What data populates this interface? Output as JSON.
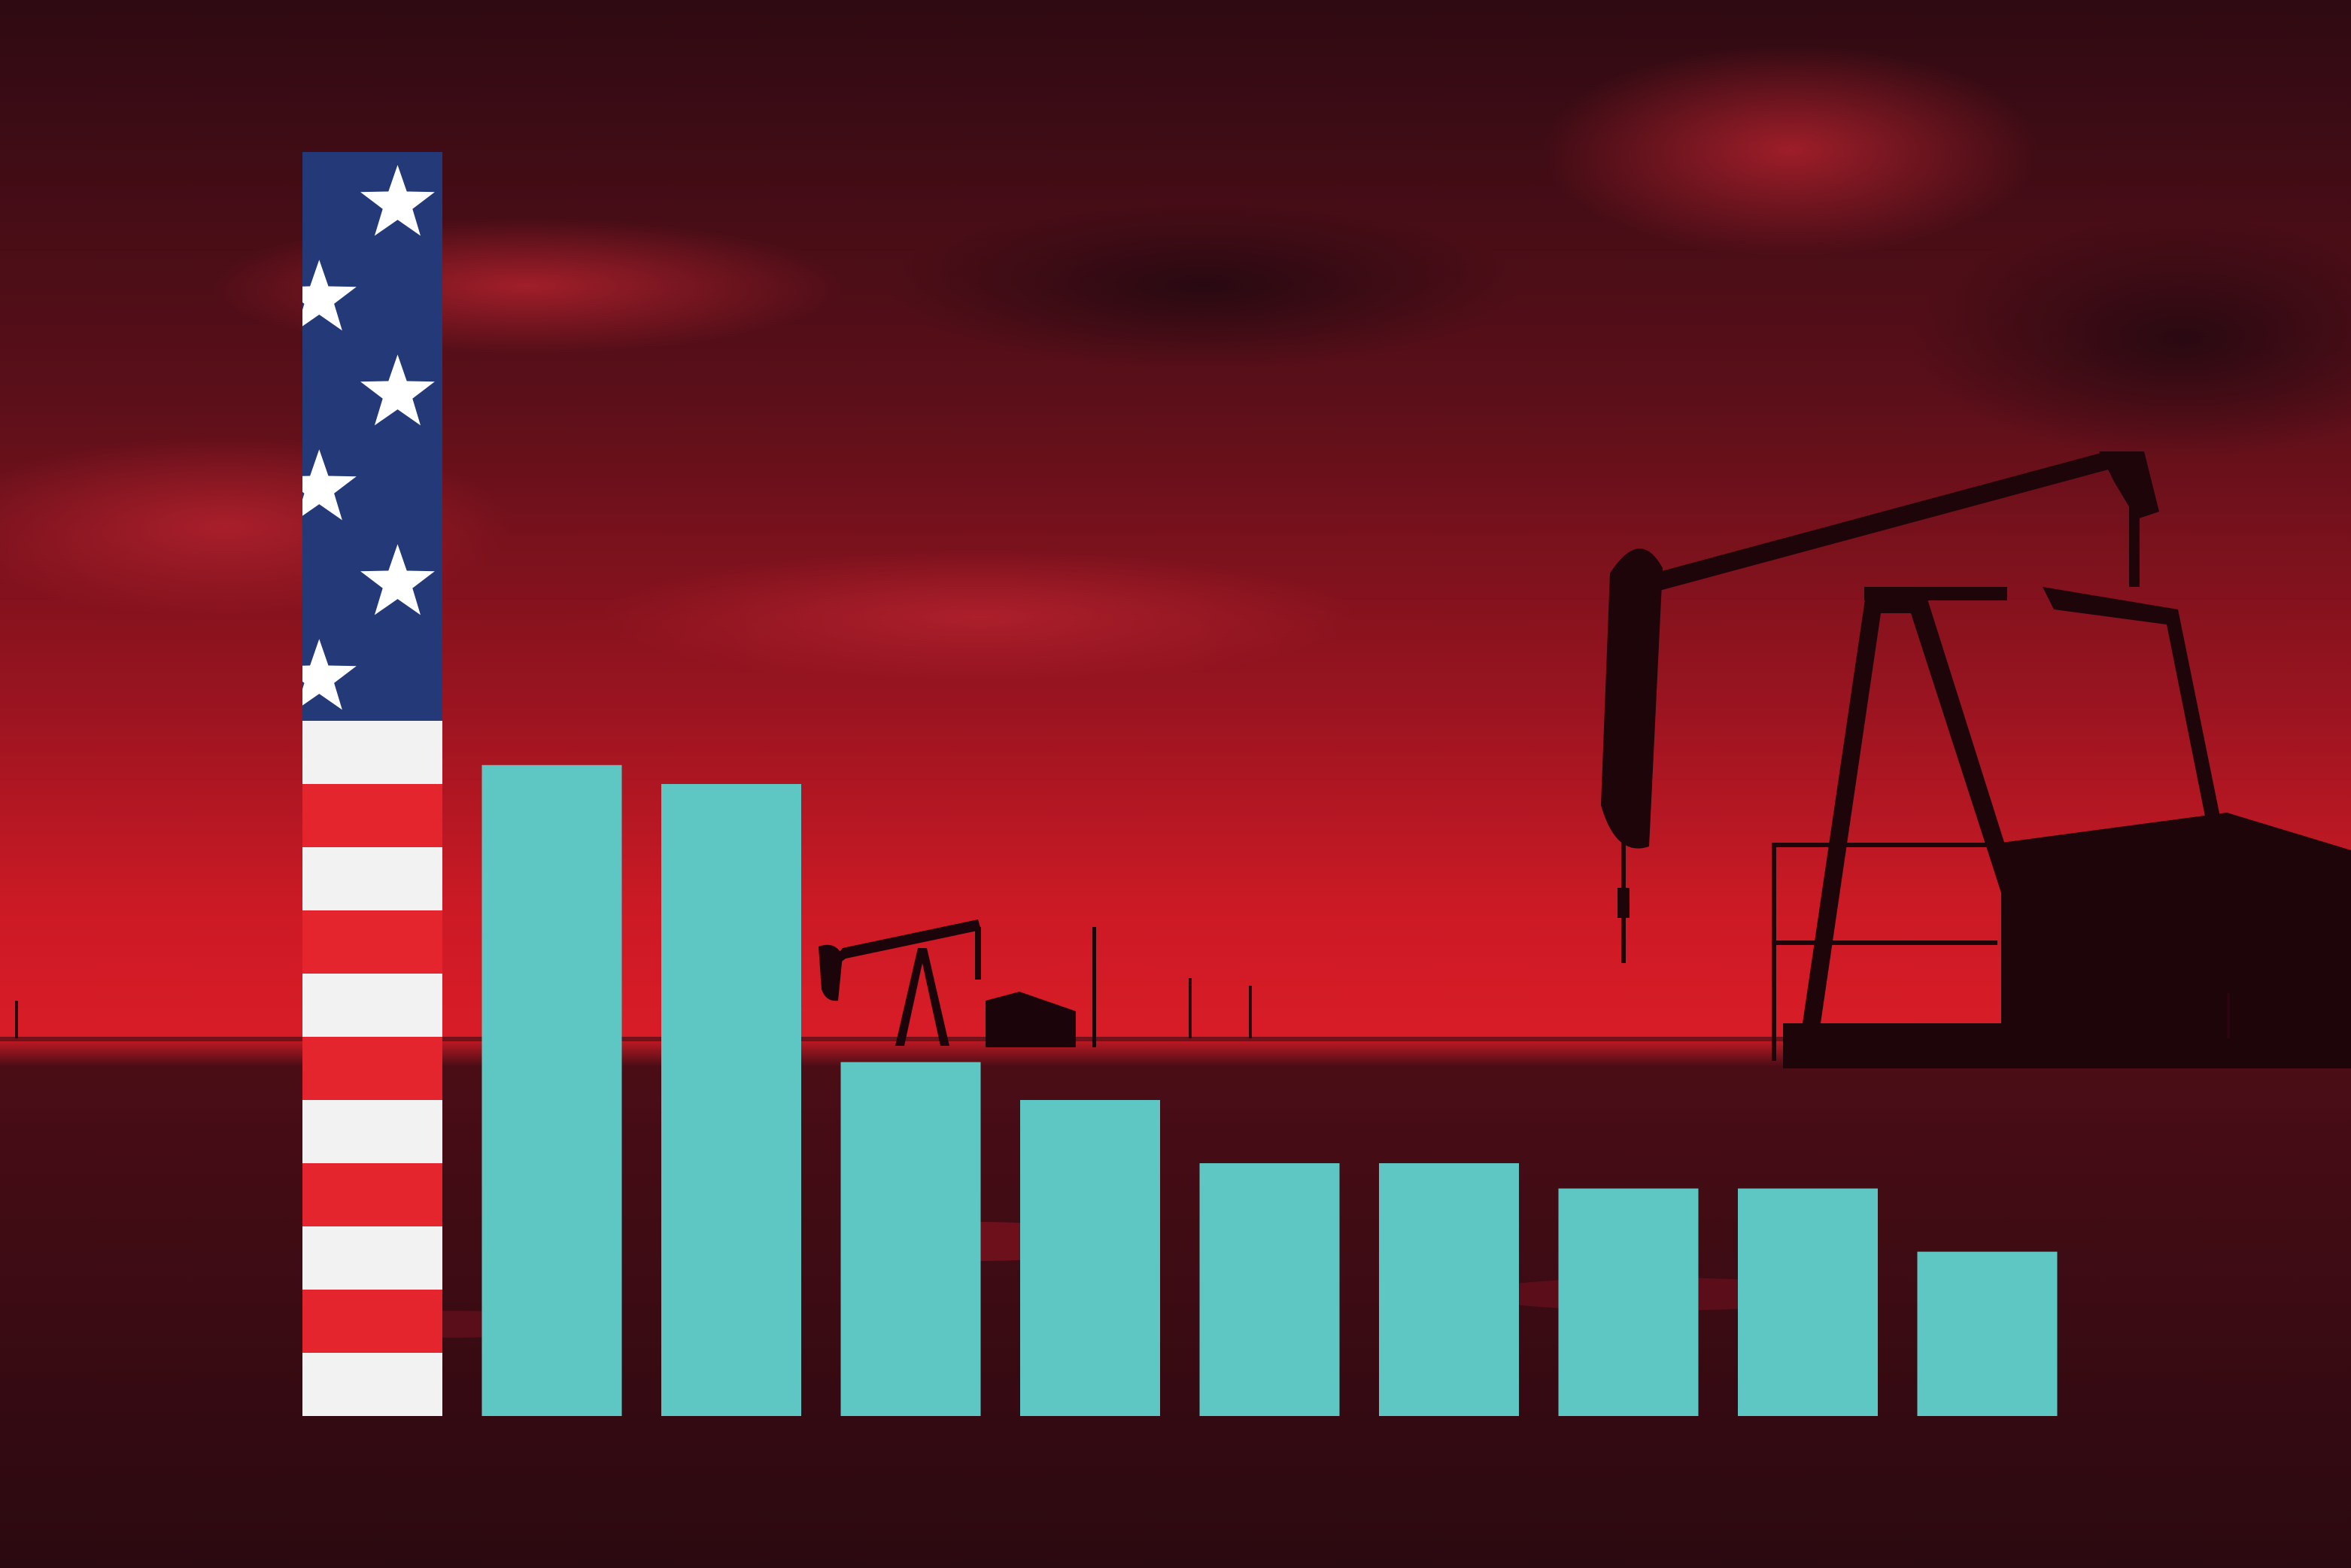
{
  "chart_data": {
    "type": "bar",
    "title": "",
    "xlabel": "",
    "ylabel": "",
    "ylim": [
      0,
      100
    ],
    "categories": [
      "",
      "",
      "",
      "",
      "",
      "",
      "",
      "",
      "",
      ""
    ],
    "values": [
      100,
      51.5,
      50,
      28,
      25,
      20,
      20,
      18,
      18,
      13
    ],
    "series": [
      {
        "values": [
          100,
          51.5,
          50,
          28,
          25,
          20,
          20,
          18,
          18,
          13
        ]
      }
    ],
    "first_bar_style": "us-flag",
    "bar_color": "#5fc7c3",
    "grid": false,
    "legend": "none"
  },
  "colors": {
    "sky_top": "#3a0d16",
    "sky_glow": "#d21a26",
    "ground": "#3d0b14",
    "flag_blue": "#243a78",
    "flag_red": "#e4252d",
    "flag_white": "#f2f2f2",
    "bar_teal": "#5fc7c3"
  }
}
